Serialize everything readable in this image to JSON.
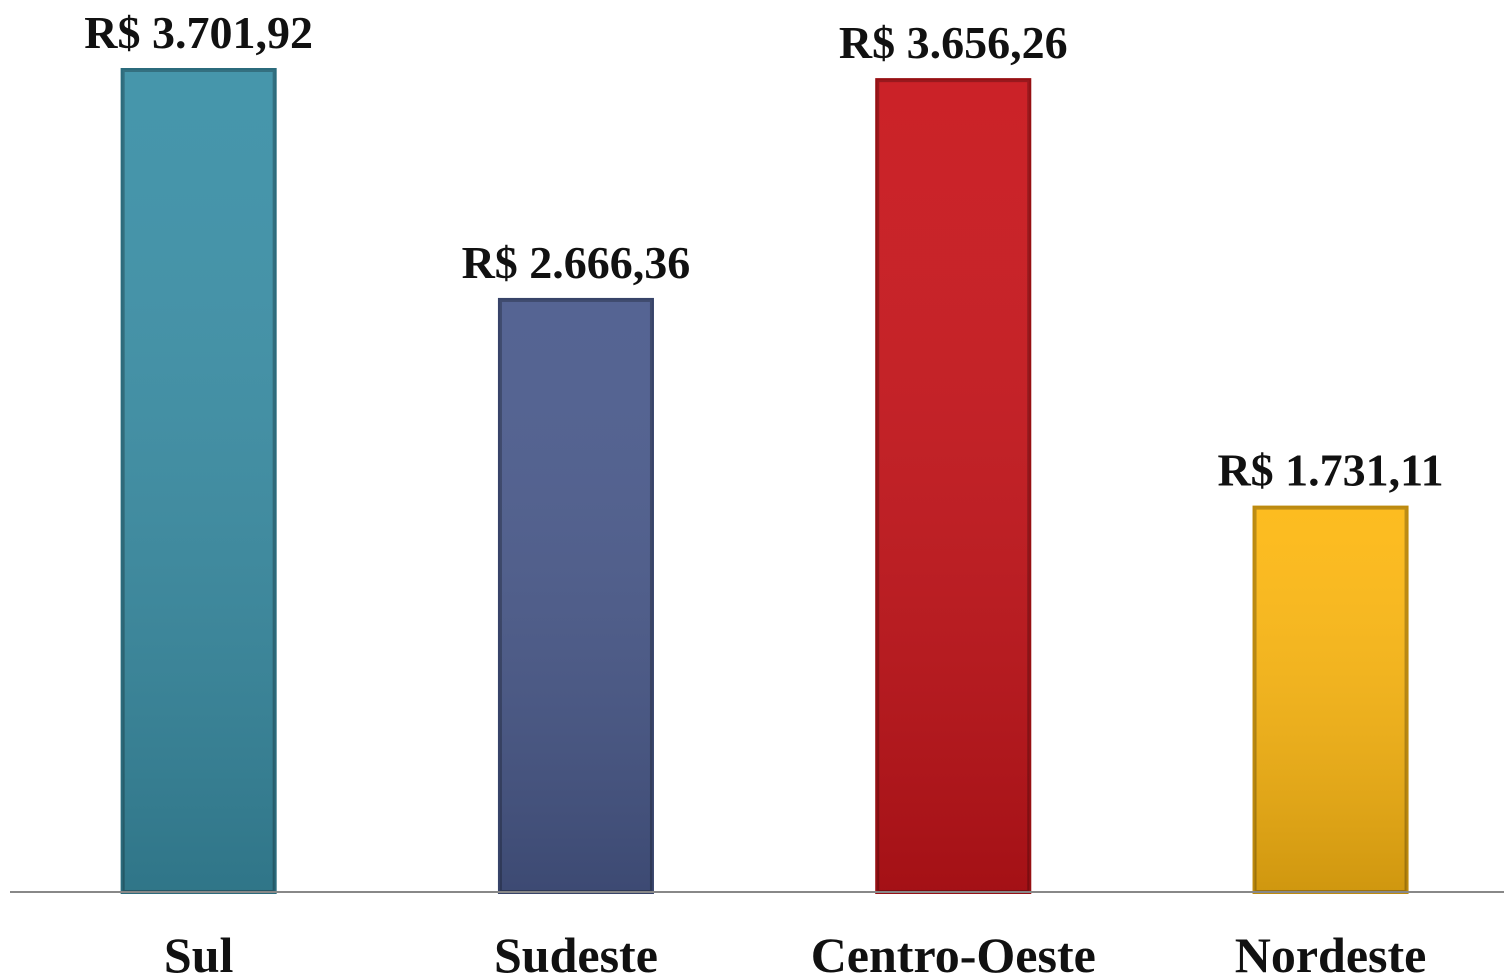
{
  "chart_data": {
    "type": "bar",
    "categories": [
      "Sul",
      "Sudeste",
      "Centro-Oeste",
      "Nordeste"
    ],
    "values": [
      3701.92,
      2666.36,
      3656.26,
      1731.11
    ],
    "value_labels": [
      "R$ 3.701,92",
      "R$ 2.666,36",
      "R$ 3.656,26",
      "R$ 1.731,11"
    ],
    "colors": [
      "#3a8fa6",
      "#4a5a8c",
      "#c8141a",
      "#fdb812"
    ]
  }
}
